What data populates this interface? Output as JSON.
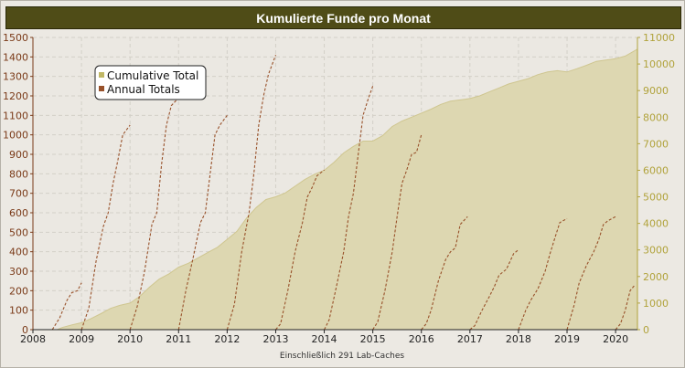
{
  "colors": {
    "title_bg": "#4f4c17",
    "cumulative_fill": "#ddd7b1",
    "cumulative_line": "#cfc690",
    "annual_line": "#98512a",
    "left_axis_text": "#7a3a18",
    "right_axis_text": "#b1a33c",
    "grid": "#d3d0c8"
  },
  "chart_data": {
    "type": "area",
    "title": "Kumulierte Funde pro Monat",
    "footnote": "Einschließlich 291 Lab-Caches",
    "xlim": [
      2008.0,
      2020.45
    ],
    "x_ticks": [
      2008,
      2009,
      2010,
      2011,
      2012,
      2013,
      2014,
      2015,
      2016,
      2017,
      2018,
      2019,
      2020
    ],
    "y_left": {
      "lim": [
        0,
        1500
      ],
      "ticks": [
        0,
        100,
        200,
        300,
        400,
        500,
        600,
        700,
        800,
        900,
        1000,
        1100,
        1200,
        1300,
        1400,
        1500
      ]
    },
    "y_right": {
      "lim": [
        0,
        11000
      ],
      "ticks": [
        0,
        1000,
        2000,
        3000,
        4000,
        5000,
        6000,
        7000,
        8000,
        9000,
        10000,
        11000
      ]
    },
    "grid": true,
    "legend": {
      "position": "top-left",
      "entries": [
        "Cumulative Total",
        "Annual Totals"
      ]
    },
    "series": [
      {
        "name": "Cumulative Total",
        "axis": "right",
        "kind": "area",
        "x": [
          2008.0,
          2008.5,
          2008.6,
          2008.8,
          2009.0,
          2009.2,
          2009.4,
          2009.6,
          2009.8,
          2010.0,
          2010.2,
          2010.4,
          2010.6,
          2010.8,
          2011.0,
          2011.2,
          2011.4,
          2011.6,
          2011.8,
          2012.0,
          2012.2,
          2012.4,
          2012.6,
          2012.8,
          2013.0,
          2013.2,
          2013.4,
          2013.6,
          2013.8,
          2014.0,
          2014.2,
          2014.4,
          2014.6,
          2014.8,
          2015.0,
          2015.2,
          2015.4,
          2015.6,
          2015.8,
          2016.0,
          2016.2,
          2016.4,
          2016.6,
          2016.8,
          2017.0,
          2017.2,
          2017.4,
          2017.6,
          2017.8,
          2018.0,
          2018.2,
          2018.4,
          2018.6,
          2018.8,
          2019.0,
          2019.2,
          2019.4,
          2019.6,
          2019.8,
          2020.0,
          2020.2,
          2020.45
        ],
        "values": [
          0,
          0,
          80,
          180,
          260,
          420,
          600,
          800,
          920,
          1000,
          1250,
          1600,
          1900,
          2100,
          2350,
          2500,
          2700,
          2900,
          3100,
          3400,
          3700,
          4200,
          4600,
          4900,
          5000,
          5150,
          5400,
          5650,
          5850,
          6000,
          6300,
          6650,
          6900,
          7100,
          7100,
          7300,
          7650,
          7850,
          8000,
          8150,
          8300,
          8480,
          8600,
          8650,
          8700,
          8800,
          8950,
          9100,
          9250,
          9350,
          9450,
          9600,
          9700,
          9750,
          9700,
          9820,
          9950,
          10100,
          10150,
          10200,
          10300,
          10560
        ]
      },
      {
        "name": "Annual Totals",
        "axis": "left",
        "kind": "dashed-line",
        "segments": [
          {
            "x": [
              2008.4,
              2008.55,
              2008.7,
              2008.8,
              2008.92,
              2009.0
            ],
            "values": [
              0,
              60,
              150,
              190,
              200,
              240
            ]
          },
          {
            "x": [
              2009.0,
              2009.15,
              2009.3,
              2009.45,
              2009.55,
              2009.65,
              2009.75,
              2009.85,
              2010.0
            ],
            "values": [
              0,
              110,
              350,
              530,
              600,
              750,
              870,
              1000,
              1050
            ]
          },
          {
            "x": [
              2010.0,
              2010.15,
              2010.3,
              2010.45,
              2010.55,
              2010.65,
              2010.75,
              2010.85,
              2011.0
            ],
            "values": [
              0,
              120,
              300,
              540,
              600,
              850,
              1050,
              1150,
              1190
            ]
          },
          {
            "x": [
              2011.0,
              2011.15,
              2011.3,
              2011.45,
              2011.55,
              2011.65,
              2011.75,
              2011.85,
              2012.0
            ],
            "values": [
              0,
              200,
              370,
              550,
              600,
              800,
              1000,
              1050,
              1100
            ]
          },
          {
            "x": [
              2012.0,
              2012.15,
              2012.3,
              2012.45,
              2012.55,
              2012.65,
              2012.75,
              2012.85,
              2013.0
            ],
            "values": [
              0,
              130,
              400,
              600,
              800,
              1050,
              1200,
              1310,
              1410
            ]
          },
          {
            "x": [
              2013.0,
              2013.1,
              2013.25,
              2013.4,
              2013.55,
              2013.65,
              2013.75,
              2013.85,
              2014.0
            ],
            "values": [
              0,
              30,
              200,
              400,
              550,
              680,
              730,
              790,
              820
            ]
          },
          {
            "x": [
              2014.0,
              2014.1,
              2014.25,
              2014.4,
              2014.5,
              2014.6,
              2014.7,
              2014.8,
              2014.9,
              2015.0
            ],
            "values": [
              0,
              50,
              220,
              400,
              580,
              700,
              900,
              1100,
              1180,
              1250
            ]
          },
          {
            "x": [
              2015.0,
              2015.1,
              2015.25,
              2015.4,
              2015.5,
              2015.6,
              2015.7,
              2015.8,
              2015.9,
              2016.0
            ],
            "values": [
              0,
              40,
              200,
              400,
              580,
              750,
              820,
              900,
              910,
              1000
            ]
          },
          {
            "x": [
              2016.0,
              2016.1,
              2016.2,
              2016.35,
              2016.5,
              2016.6,
              2016.7,
              2016.8,
              2016.95
            ],
            "values": [
              0,
              30,
              100,
              250,
              360,
              400,
              420,
              540,
              580
            ]
          },
          {
            "x": [
              2017.0,
              2017.1,
              2017.25,
              2017.4,
              2017.5,
              2017.6,
              2017.75,
              2017.9,
              2018.0
            ],
            "values": [
              0,
              20,
              100,
              170,
              220,
              280,
              310,
              390,
              410
            ]
          },
          {
            "x": [
              2018.0,
              2018.15,
              2018.25,
              2018.4,
              2018.55,
              2018.65,
              2018.75,
              2018.85,
              2019.0
            ],
            "values": [
              0,
              100,
              150,
              210,
              300,
              390,
              470,
              550,
              570
            ]
          },
          {
            "x": [
              2019.0,
              2019.15,
              2019.25,
              2019.4,
              2019.55,
              2019.65,
              2019.75,
              2019.85,
              2020.0
            ],
            "values": [
              0,
              130,
              240,
              330,
              400,
              460,
              540,
              560,
              580
            ]
          },
          {
            "x": [
              2020.0,
              2020.1,
              2020.2,
              2020.3,
              2020.4
            ],
            "values": [
              0,
              30,
              100,
              200,
              230
            ]
          }
        ]
      }
    ]
  }
}
